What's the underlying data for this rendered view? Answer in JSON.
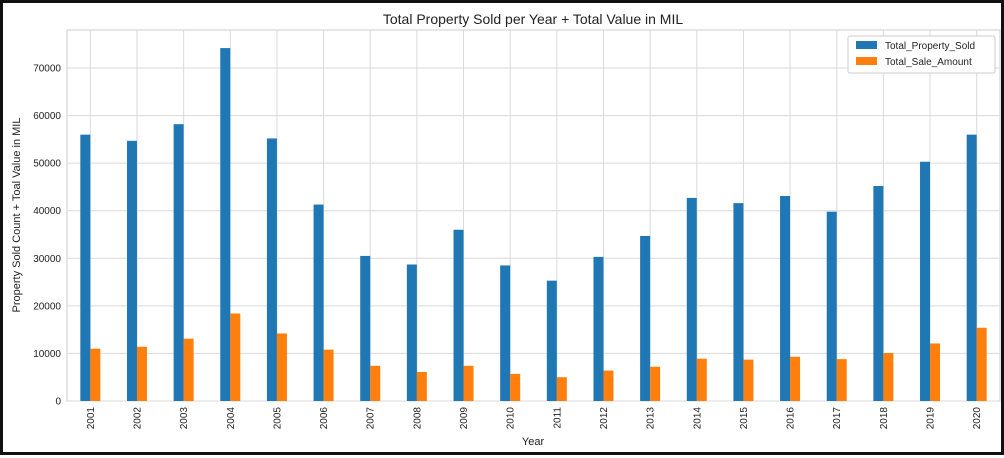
{
  "chart_data": {
    "type": "bar",
    "title": "Total Property Sold per Year + Total Value in MIL",
    "xlabel": "Year",
    "ylabel": "Property Sold Count + Toal Value in MIL",
    "categories": [
      "2001",
      "2002",
      "2003",
      "2004",
      "2005",
      "2006",
      "2007",
      "2008",
      "2009",
      "2010",
      "2011",
      "2012",
      "2013",
      "2014",
      "2015",
      "2016",
      "2017",
      "2018",
      "2019",
      "2020"
    ],
    "series": [
      {
        "name": "Total_Property_Sold",
        "color": "#1f77b4",
        "values": [
          56000,
          54700,
          58200,
          74200,
          55200,
          41300,
          30500,
          28700,
          36000,
          28500,
          25300,
          30300,
          34700,
          42700,
          41600,
          43100,
          39800,
          45200,
          50300,
          56000
        ]
      },
      {
        "name": "Total_Sale_Amount",
        "color": "#ff7f0e",
        "values": [
          11000,
          11400,
          13100,
          18400,
          14200,
          10800,
          7400,
          6100,
          7400,
          5700,
          5000,
          6400,
          7200,
          8900,
          8700,
          9300,
          8800,
          10100,
          12100,
          15400
        ]
      }
    ],
    "yticks": [
      0,
      10000,
      20000,
      30000,
      40000,
      50000,
      60000,
      70000
    ],
    "ylim": [
      0,
      78000
    ],
    "grid": true,
    "legend": "top-right"
  }
}
